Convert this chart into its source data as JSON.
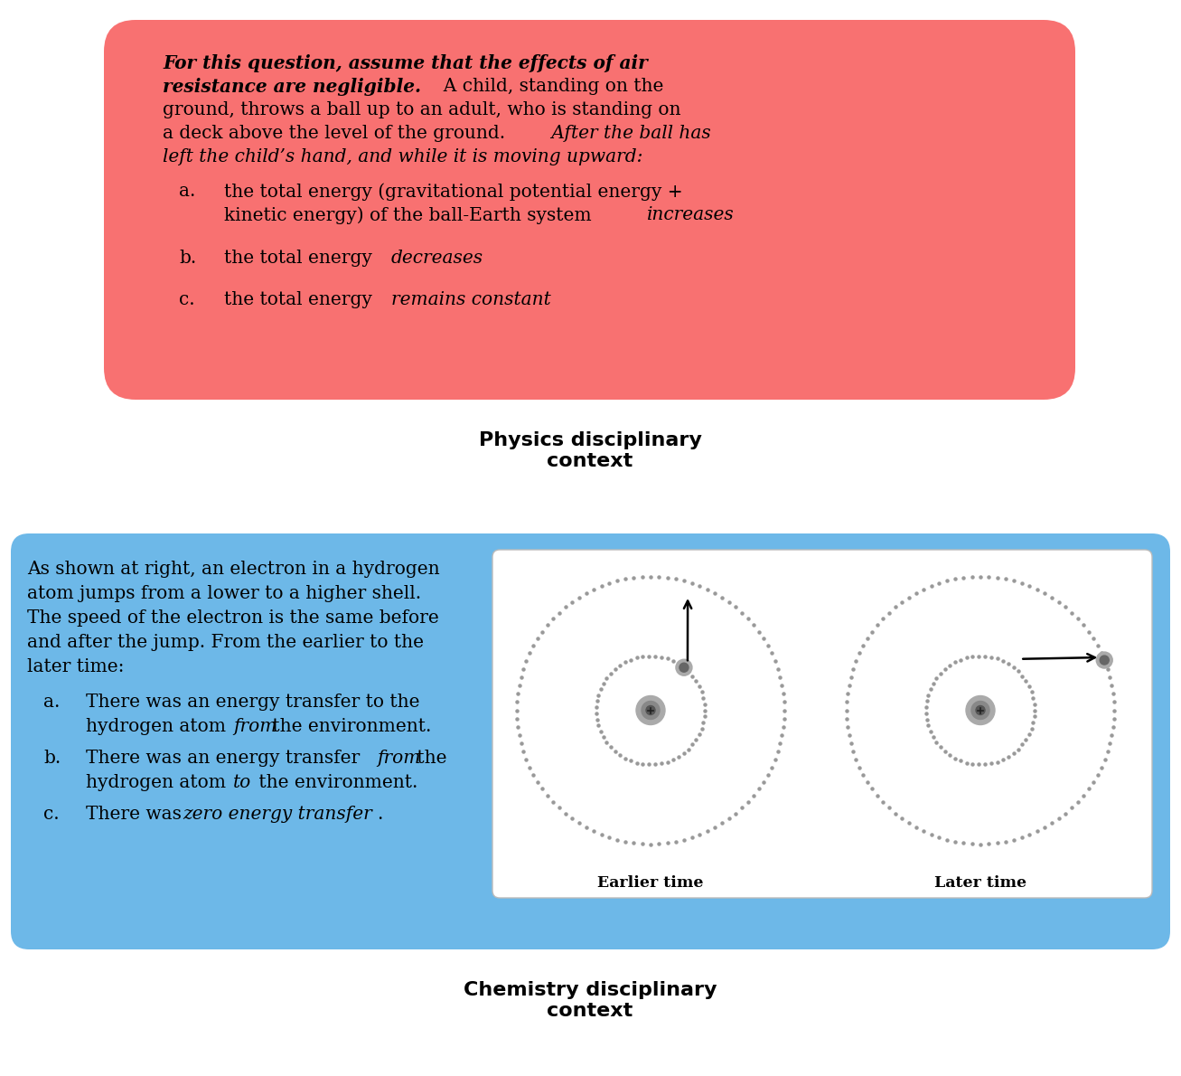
{
  "bg_color": "#ffffff",
  "physics_box_color": "#f87171",
  "chemistry_box_color": "#6db8e8",
  "physics_title": "Physics disciplinary\ncontext",
  "chemistry_title": "Chemistry disciplinary\ncontext",
  "earlier_label": "Earlier time",
  "later_label": "Later time"
}
